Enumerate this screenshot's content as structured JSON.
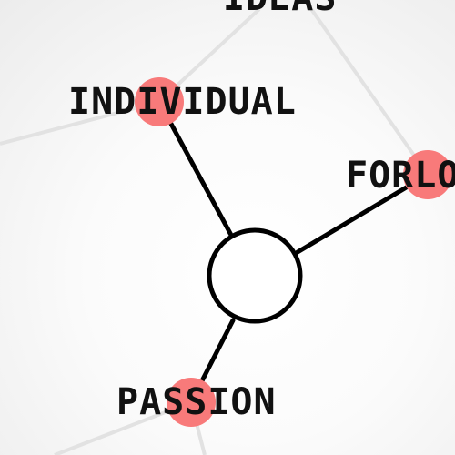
{
  "game": {
    "center_node": {
      "label": ""
    },
    "connected_words": [
      {
        "text": "INDIVIDUAL",
        "marker_color": "#f87a7a"
      },
      {
        "text": "FORLO",
        "marker_color": "#f87a7a"
      },
      {
        "text": "PASSION",
        "marker_color": "#f87a7a"
      }
    ],
    "background_words": [
      {
        "text": "IDEAS"
      }
    ]
  },
  "colors": {
    "background": "#f4f4f4",
    "connector": "#000000",
    "background_link": "#e2e2e2",
    "marker": "#f87a7a",
    "text": "#111111"
  }
}
